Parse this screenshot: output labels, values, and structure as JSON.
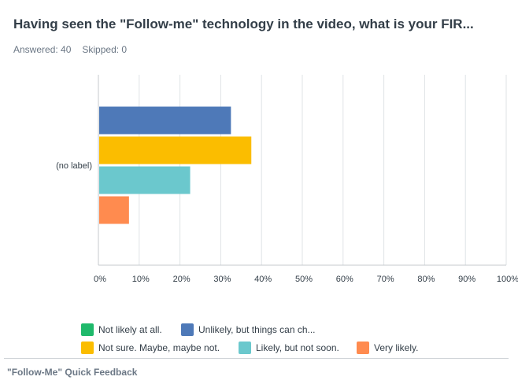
{
  "question": {
    "title": "Having seen the \"Follow-me\" technology in the video, what is your FIR...",
    "answered": "Answered: 40",
    "skipped": "Skipped: 0"
  },
  "chart_data": {
    "type": "bar",
    "orientation": "horizontal",
    "categories": [
      "(no label)"
    ],
    "series": [
      {
        "name": "Not likely at all.",
        "color": "#1fb96b",
        "values": [
          0
        ]
      },
      {
        "name": "Unlikely, but things can ch...",
        "color": "#4e79b8",
        "values": [
          32.5
        ]
      },
      {
        "name": "Not sure. Maybe, maybe not.",
        "color": "#fbbd00",
        "values": [
          37.5
        ]
      },
      {
        "name": "Likely, but not soon.",
        "color": "#6bc8cd",
        "values": [
          22.5
        ]
      },
      {
        "name": "Very likely.",
        "color": "#ff8b4f",
        "values": [
          7.5
        ]
      }
    ],
    "xlim": [
      0,
      100
    ],
    "x_ticks": [
      "0%",
      "10%",
      "20%",
      "30%",
      "40%",
      "50%",
      "60%",
      "70%",
      "80%",
      "90%",
      "100%"
    ],
    "grid": true,
    "legend_position": "bottom"
  },
  "legend": {
    "rows": [
      [
        {
          "label": "Not likely at all.",
          "color": "#1fb96b"
        },
        {
          "label": "Unlikely, but things can ch...",
          "color": "#4e79b8"
        }
      ],
      [
        {
          "label": "Not sure. Maybe, maybe not.",
          "color": "#fbbd00"
        },
        {
          "label": "Likely, but not soon.",
          "color": "#6bc8cd"
        },
        {
          "label": "Very likely.",
          "color": "#ff8b4f"
        }
      ]
    ]
  },
  "footer": {
    "survey_title": "\"Follow-Me\" Quick Feedback"
  }
}
